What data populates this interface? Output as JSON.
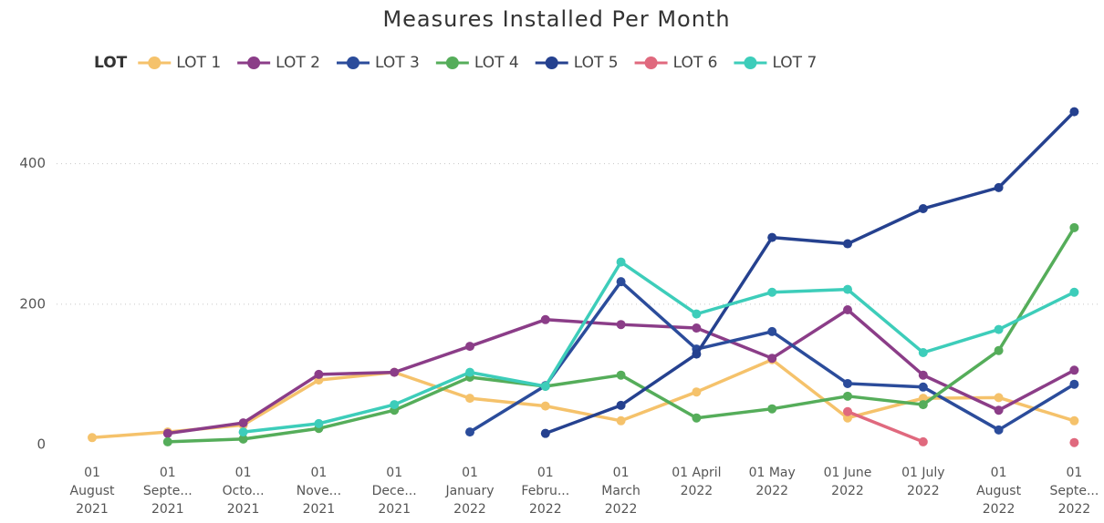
{
  "chart_data": {
    "type": "line",
    "title": "Measures Installed Per Month",
    "legend_title": "LOT",
    "legend": "top",
    "grid": true,
    "categories": [
      [
        "01",
        "August",
        "2021"
      ],
      [
        "01",
        "Septe...",
        "2021"
      ],
      [
        "01",
        "Octo...",
        "2021"
      ],
      [
        "01",
        "Nove...",
        "2021"
      ],
      [
        "01",
        "Dece...",
        "2021"
      ],
      [
        "01",
        "January",
        "2022"
      ],
      [
        "01",
        "Febru...",
        "2022"
      ],
      [
        "01",
        "March",
        "2022"
      ],
      [
        "01 April",
        "2022"
      ],
      [
        "01 May",
        "2022"
      ],
      [
        "01 June",
        "2022"
      ],
      [
        "01 July",
        "2022"
      ],
      [
        "01",
        "August",
        "2022"
      ],
      [
        "01",
        "Septe...",
        "2022"
      ]
    ],
    "ylim": [
      0,
      480
    ],
    "yticks": [
      0,
      200,
      400
    ],
    "series": [
      {
        "name": "LOT 1",
        "color": "#F5C26B",
        "values": [
          10,
          18,
          28,
          92,
          103,
          66,
          55,
          34,
          75,
          121,
          38,
          66,
          67,
          34
        ]
      },
      {
        "name": "LOT 2",
        "color": "#8B3D88",
        "values": [
          null,
          16,
          31,
          100,
          103,
          140,
          178,
          171,
          166,
          123,
          192,
          99,
          49,
          106
        ]
      },
      {
        "name": "LOT 3",
        "color": "#2B4C9B",
        "values": [
          null,
          null,
          null,
          null,
          null,
          18,
          84,
          232,
          136,
          161,
          87,
          82,
          21,
          86
        ]
      },
      {
        "name": "LOT 4",
        "color": "#55AD5A",
        "values": [
          null,
          4,
          8,
          23,
          49,
          96,
          83,
          99,
          38,
          51,
          69,
          57,
          134,
          309
        ]
      },
      {
        "name": "LOT 5",
        "color": "#25418F",
        "values": [
          null,
          null,
          null,
          null,
          null,
          null,
          16,
          56,
          129,
          295,
          286,
          336,
          366,
          474
        ]
      },
      {
        "name": "LOT 6",
        "color": "#E0697E",
        "values": [
          null,
          null,
          null,
          null,
          null,
          null,
          null,
          null,
          null,
          null,
          47,
          4,
          null,
          3
        ]
      },
      {
        "name": "LOT 7",
        "color": "#3DCDBA",
        "values": [
          null,
          null,
          18,
          30,
          57,
          103,
          83,
          260,
          186,
          217,
          221,
          131,
          164,
          217
        ]
      }
    ]
  }
}
